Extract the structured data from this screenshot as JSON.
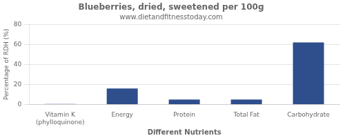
{
  "chart_data": {
    "type": "bar",
    "title": "Blueberries, dried, sweetened per 100g",
    "subtitle": "www.dietandfitnesstoday.com",
    "xlabel": "Different Nutrients",
    "ylabel": "Percentage of RDH (%)",
    "categories": [
      "Vitamin K (phylloquinone)",
      "Energy",
      "Protein",
      "Total Fat",
      "Carbohydrate"
    ],
    "values": [
      0.5,
      16,
      5,
      5,
      62
    ],
    "color": "#2e4e8c",
    "ylim": [
      0,
      80
    ],
    "yticks": [
      0,
      20,
      40,
      60,
      80
    ],
    "grid": true
  }
}
